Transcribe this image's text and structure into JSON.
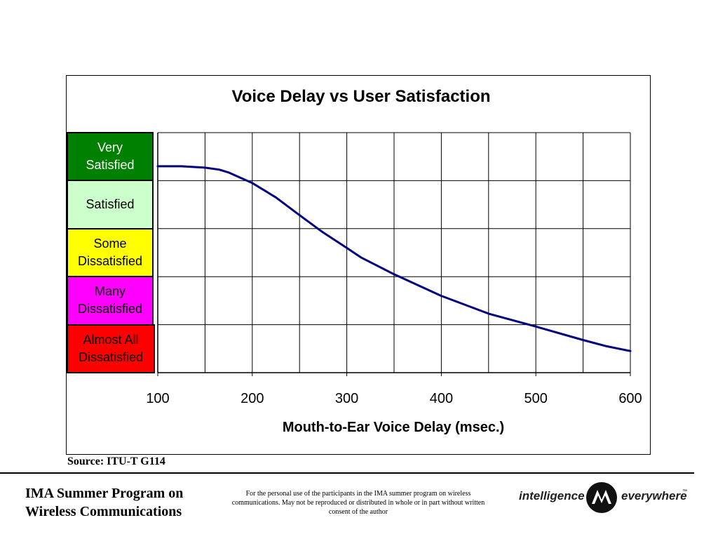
{
  "chart_data": {
    "type": "line",
    "title": "Voice Delay vs User Satisfaction",
    "xlabel": "Mouth-to-Ear Voice Delay (msec.)",
    "ylabel": "",
    "xlim": [
      100,
      600
    ],
    "ylim": [
      0,
      5
    ],
    "x_ticks": [
      "100",
      "200",
      "300",
      "400",
      "500",
      "600"
    ],
    "grid": true,
    "legend": "none",
    "y_bands": [
      {
        "label": "Very\nSatisfied",
        "color": "#008000",
        "text_color": "#ffffff"
      },
      {
        "label": "Satisfied",
        "color": "#ccffcc",
        "text_color": "#000000"
      },
      {
        "label": "Some\nDissatisfied",
        "color": "#ffff00",
        "text_color": "#000000"
      },
      {
        "label": "Many\nDissatisfied",
        "color": "#ff00ff",
        "text_color": "#000000"
      },
      {
        "label": "Almost All\nDissatisfied",
        "color": "#ff0000",
        "text_color": "#000000"
      }
    ],
    "series": [
      {
        "color": "#000080",
        "x": [
          100,
          125,
          150,
          165,
          175,
          200,
          225,
          250,
          275,
          300,
          315,
          350,
          400,
          450,
          500,
          550,
          575,
          600
        ],
        "y": [
          4.3,
          4.3,
          4.27,
          4.23,
          4.17,
          3.95,
          3.65,
          3.28,
          2.92,
          2.6,
          2.4,
          2.05,
          1.6,
          1.23,
          0.96,
          0.68,
          0.55,
          0.45
        ]
      }
    ]
  },
  "footer": {
    "source": "Source: ITU-T G114",
    "program_title": "IMA Summer Program on\nWireless Communications",
    "disclaimer": "For the personal use of the participants in the IMA summer program on wireless communications. May not be reproduced or distributed  in whole or in part without written consent of the author",
    "brand_left": "intelligence",
    "brand_right": "everywhere",
    "brand_logo_icon": "motorola-batwing-icon"
  }
}
